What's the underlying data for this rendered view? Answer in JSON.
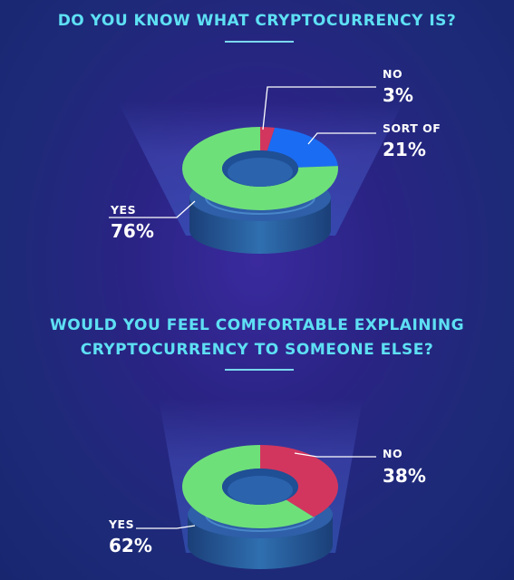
{
  "colors": {
    "accent_text": "#5ee0f4",
    "yes": "#6ee07a",
    "no": "#d2365e",
    "sort_of": "#1a6cf2"
  },
  "chart_data": [
    {
      "type": "pie",
      "style": "donut",
      "title": "DO YOU KNOW WHAT CRYPTOCURRENCY IS?",
      "slices": [
        {
          "label": "NO",
          "value": 3,
          "display": "3%",
          "color": "#d2365e"
        },
        {
          "label": "SORT OF",
          "value": 21,
          "display": "21%",
          "color": "#1a6cf2"
        },
        {
          "label": "YES",
          "value": 76,
          "display": "76%",
          "color": "#6ee07a"
        }
      ]
    },
    {
      "type": "pie",
      "style": "donut",
      "title_line1": "WOULD YOU FEEL COMFORTABLE EXPLAINING",
      "title_line2": "CRYPTOCURRENCY TO SOMEONE ELSE?",
      "slices": [
        {
          "label": "NO",
          "value": 38,
          "display": "38%",
          "color": "#d2365e"
        },
        {
          "label": "YES",
          "value": 62,
          "display": "62%",
          "color": "#6ee07a"
        }
      ]
    }
  ]
}
